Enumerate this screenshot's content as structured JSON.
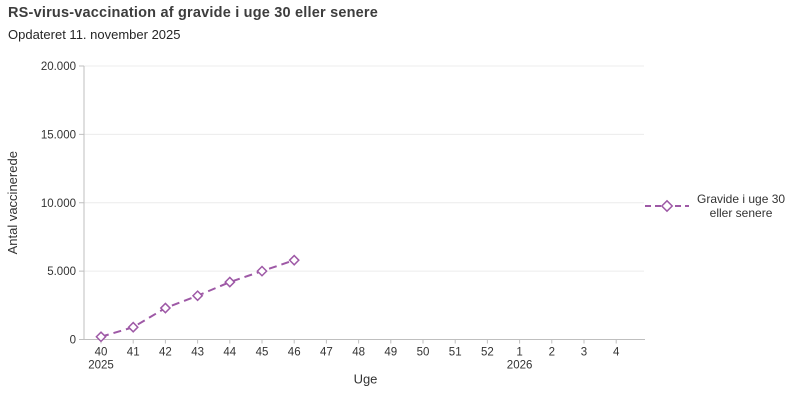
{
  "header": {
    "note": ""
  },
  "colors": {
    "series": "#9e59a6",
    "grid": "#ececec",
    "axis": "#bfbfbf",
    "tick_text": "#333333",
    "title_text": "#3d3d3d",
    "subtitle_text": "#262626",
    "marker_fill": "#ffffff"
  },
  "chart_data": {
    "type": "line",
    "title": "RS-virus-vaccination af gravide i uge 30 eller senere",
    "subtitle": "Opdateret 11. november 2025",
    "xlabel": "Uge",
    "ylabel": "Antal vaccinerede",
    "categories": [
      "40",
      "41",
      "42",
      "43",
      "44",
      "45",
      "46",
      "47",
      "48",
      "49",
      "50",
      "51",
      "52",
      "1",
      "2",
      "3",
      "4"
    ],
    "year_markers": [
      {
        "category_index": 0,
        "label": "2025"
      },
      {
        "category_index": 13,
        "label": "2026"
      }
    ],
    "ylim": [
      0,
      20000
    ],
    "y_ticks": [
      0,
      5000,
      10000,
      15000,
      20000
    ],
    "y_tick_labels": [
      "0",
      "5.000",
      "10.000",
      "15.000",
      "20.000"
    ],
    "grid": "horizontal",
    "legend_position": "right",
    "series": [
      {
        "name": "Gravide i uge 30 eller senere",
        "legend_lines": [
          "Gravide i uge 30",
          "eller senere"
        ],
        "color": "#9e59a6",
        "line_style": "dashed",
        "marker": "open-diamond",
        "categories_covered": [
          "40",
          "41",
          "42",
          "43",
          "44",
          "45",
          "46"
        ],
        "values": [
          200,
          900,
          2300,
          3200,
          4200,
          5000,
          5800
        ]
      }
    ]
  }
}
